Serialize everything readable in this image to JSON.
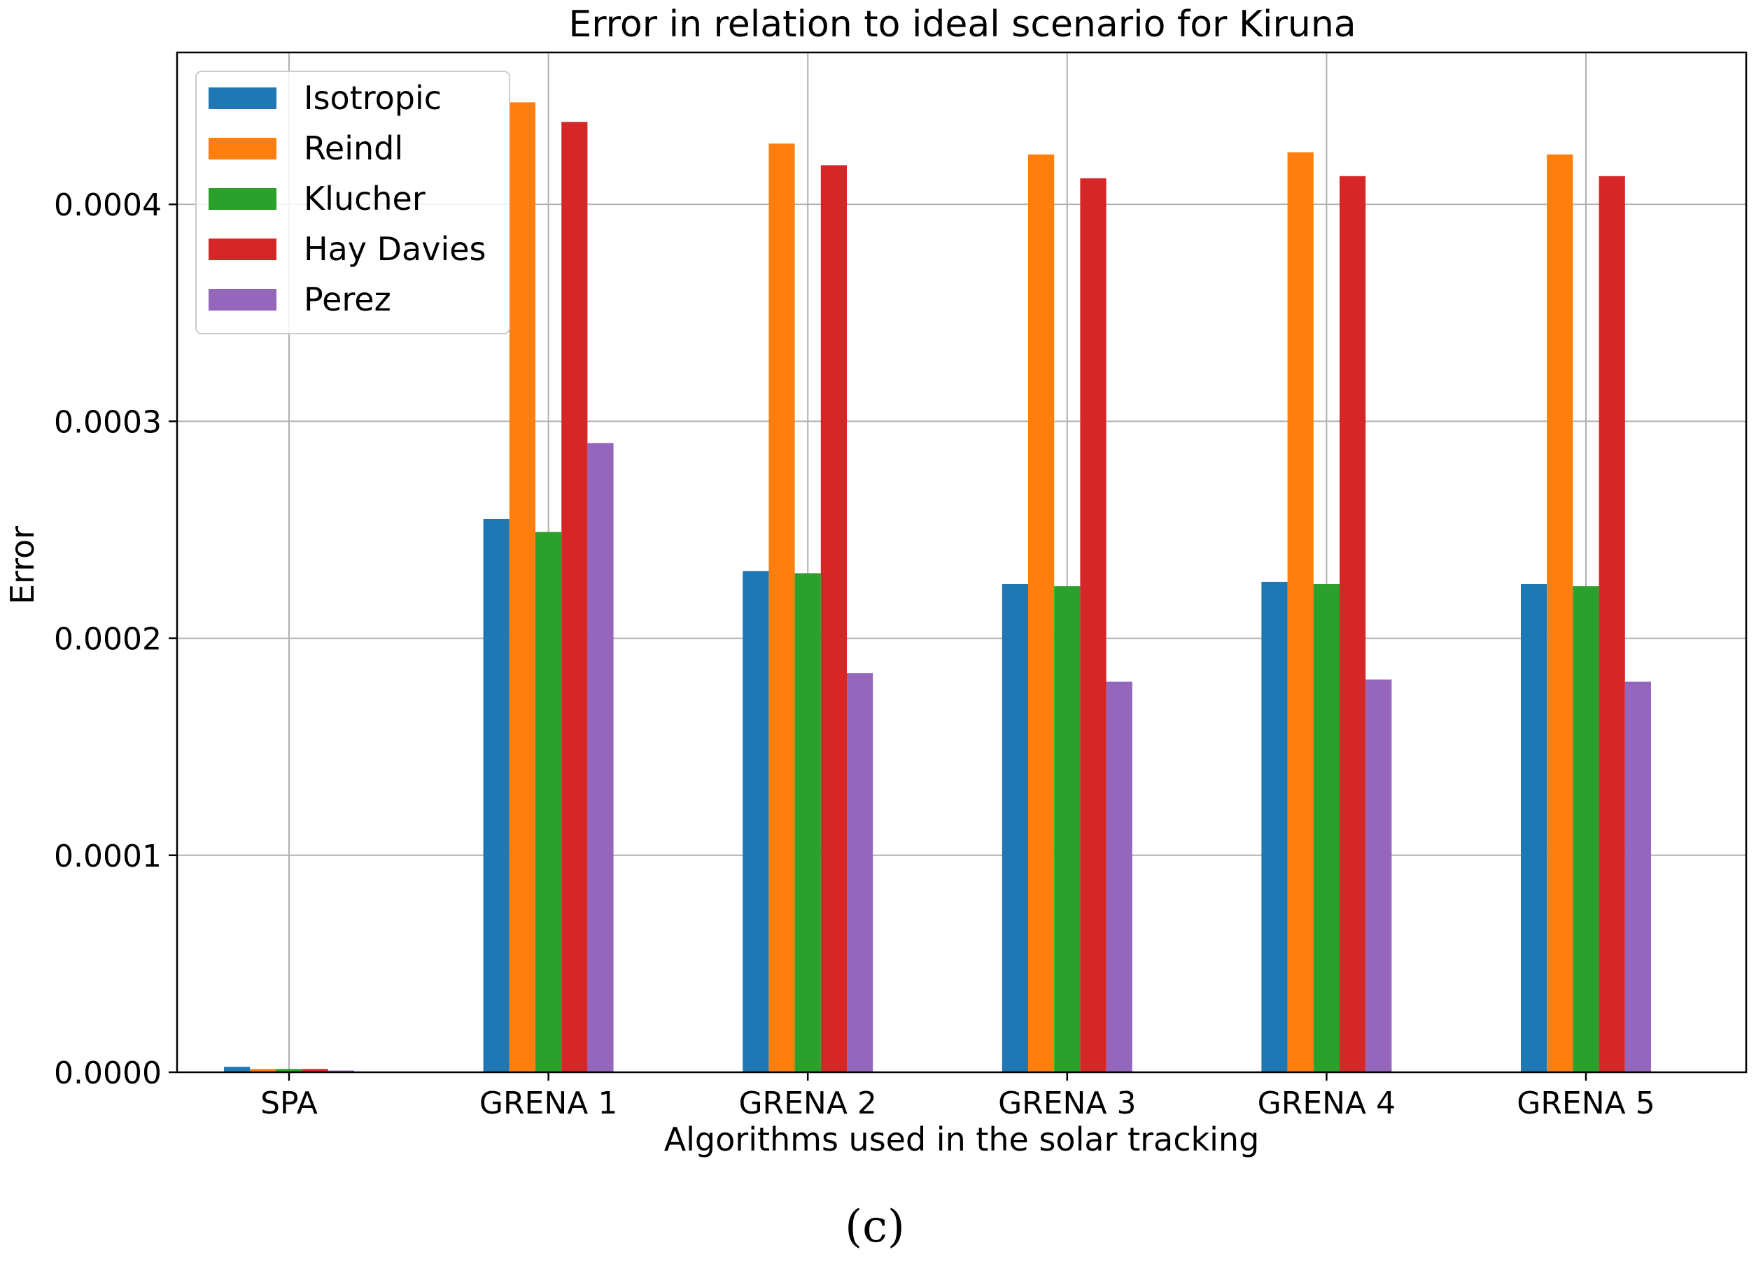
{
  "chart_data": {
    "type": "bar",
    "title": "Error in relation to ideal scenario for Kiruna",
    "xlabel": "Algorithms used in the solar tracking",
    "ylabel": "Error",
    "categories": [
      "SPA",
      "GRENA 1",
      "GRENA 2",
      "GRENA 3",
      "GRENA 4",
      "GRENA 5"
    ],
    "ylim": [
      0,
      0.00047
    ],
    "yticks": [
      0.0,
      0.0001,
      0.0002,
      0.0003,
      0.0004
    ],
    "ytick_labels": [
      "0.0000",
      "0.0001",
      "0.0002",
      "0.0003",
      "0.0004"
    ],
    "grid": true,
    "legend_position": "top-left",
    "series": [
      {
        "name": "Isotropic",
        "color": "#1f77b4",
        "values": [
          2.5e-06,
          0.000255,
          0.000231,
          0.000225,
          0.000226,
          0.000225
        ]
      },
      {
        "name": "Reindl",
        "color": "#ff7f0e",
        "values": [
          1.5e-06,
          0.000447,
          0.000428,
          0.000423,
          0.000424,
          0.000423
        ]
      },
      {
        "name": "Klucher",
        "color": "#2ca02c",
        "values": [
          1.5e-06,
          0.000249,
          0.00023,
          0.000224,
          0.000225,
          0.000224
        ]
      },
      {
        "name": "Hay Davies",
        "color": "#d62728",
        "values": [
          1.5e-06,
          0.000438,
          0.000418,
          0.000412,
          0.000413,
          0.000413
        ]
      },
      {
        "name": "Perez",
        "color": "#9467bd",
        "values": [
          8e-07,
          0.00029,
          0.000184,
          0.00018,
          0.000181,
          0.00018
        ]
      }
    ]
  },
  "caption": "(c)"
}
